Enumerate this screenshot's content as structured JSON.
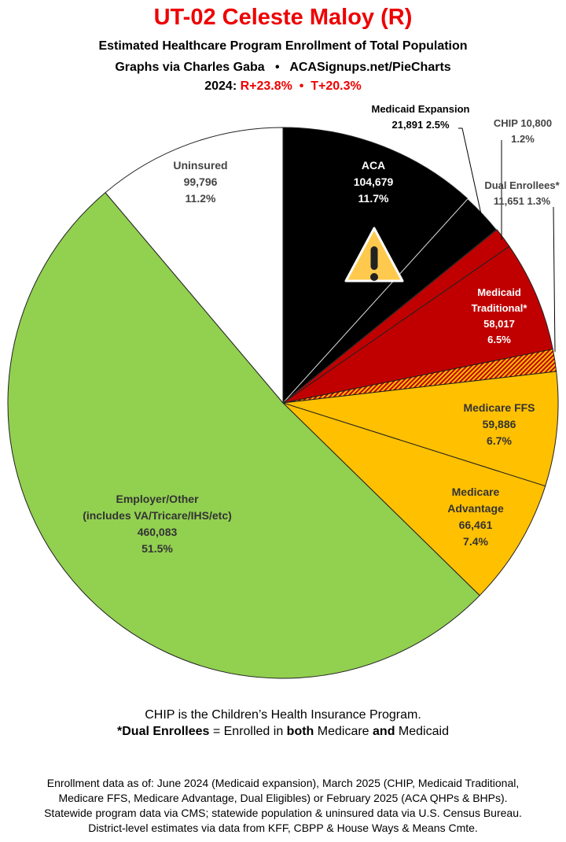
{
  "header": {
    "title": "UT-02 Celeste Maloy (R)",
    "subtitle": "Estimated Healthcare Program Enrollment of Total Population",
    "credit": "Graphs via Charles Gaba   •   ACASignups.net/PieCharts",
    "year_label": "2024:",
    "partisan": "R+23.8%  •  T+20.3%"
  },
  "chart_data": {
    "type": "pie",
    "start": "top",
    "direction": "clockwise",
    "slices": [
      {
        "name": "ACA",
        "value": 104679,
        "pct": "11.7%",
        "value_label": "104,679",
        "color": "#000000"
      },
      {
        "name": "Medicaid Expansion",
        "value": 21891,
        "pct": "2.5%",
        "value_label": "21,891",
        "color": "#000000"
      },
      {
        "name": "CHIP",
        "value": 10800,
        "pct": "1.2%",
        "value_label": "10,800",
        "color": "#c00000"
      },
      {
        "name": "Medicaid Traditional*",
        "value": 58017,
        "pct": "6.5%",
        "value_label": "58,017",
        "color": "#c00000"
      },
      {
        "name": "Dual Enrollees*",
        "value": 11651,
        "pct": "1.3%",
        "value_label": "11,651",
        "color": "hatch"
      },
      {
        "name": "Medicare FFS",
        "value": 59886,
        "pct": "6.7%",
        "value_label": "59,886",
        "color": "#ffc000"
      },
      {
        "name": "Medicare Advantage",
        "value": 66461,
        "pct": "7.4%",
        "value_label": "66,461",
        "color": "#ffc000"
      },
      {
        "name": "Employer/Other",
        "sublabel": "(includes VA/Tricare/IHS/etc)",
        "value": 460083,
        "pct": "51.5%",
        "value_label": "460,083",
        "color": "#92d050"
      },
      {
        "name": "Uninsured",
        "value": 99796,
        "pct": "11.2%",
        "value_label": "99,796",
        "color": "#ffffff"
      }
    ],
    "icons": [
      "warning-icon"
    ]
  },
  "notes": {
    "chip": "CHIP is the Children’s Health Insurance Program.",
    "dual_term": "*Dual Enrollees",
    "dual_eq": " = Enrolled in ",
    "both": "both",
    "mid": " Medicare ",
    "and": "and",
    "end": " Medicaid"
  },
  "footer": [
    "Enrollment data as of: June 2024 (Medicaid expansion), March 2025 (CHIP, Medicaid Traditional,",
    "Medicare FFS, Medicare Advantage, Dual Eligibles) or February 2025 (ACA QHPs & BHPs).",
    "Statewide program data via CMS; statewide population & uninsured data via U.S. Census Bureau.",
    "District-level estimates via data from KFF, CBPP & House Ways & Means Cmte."
  ]
}
